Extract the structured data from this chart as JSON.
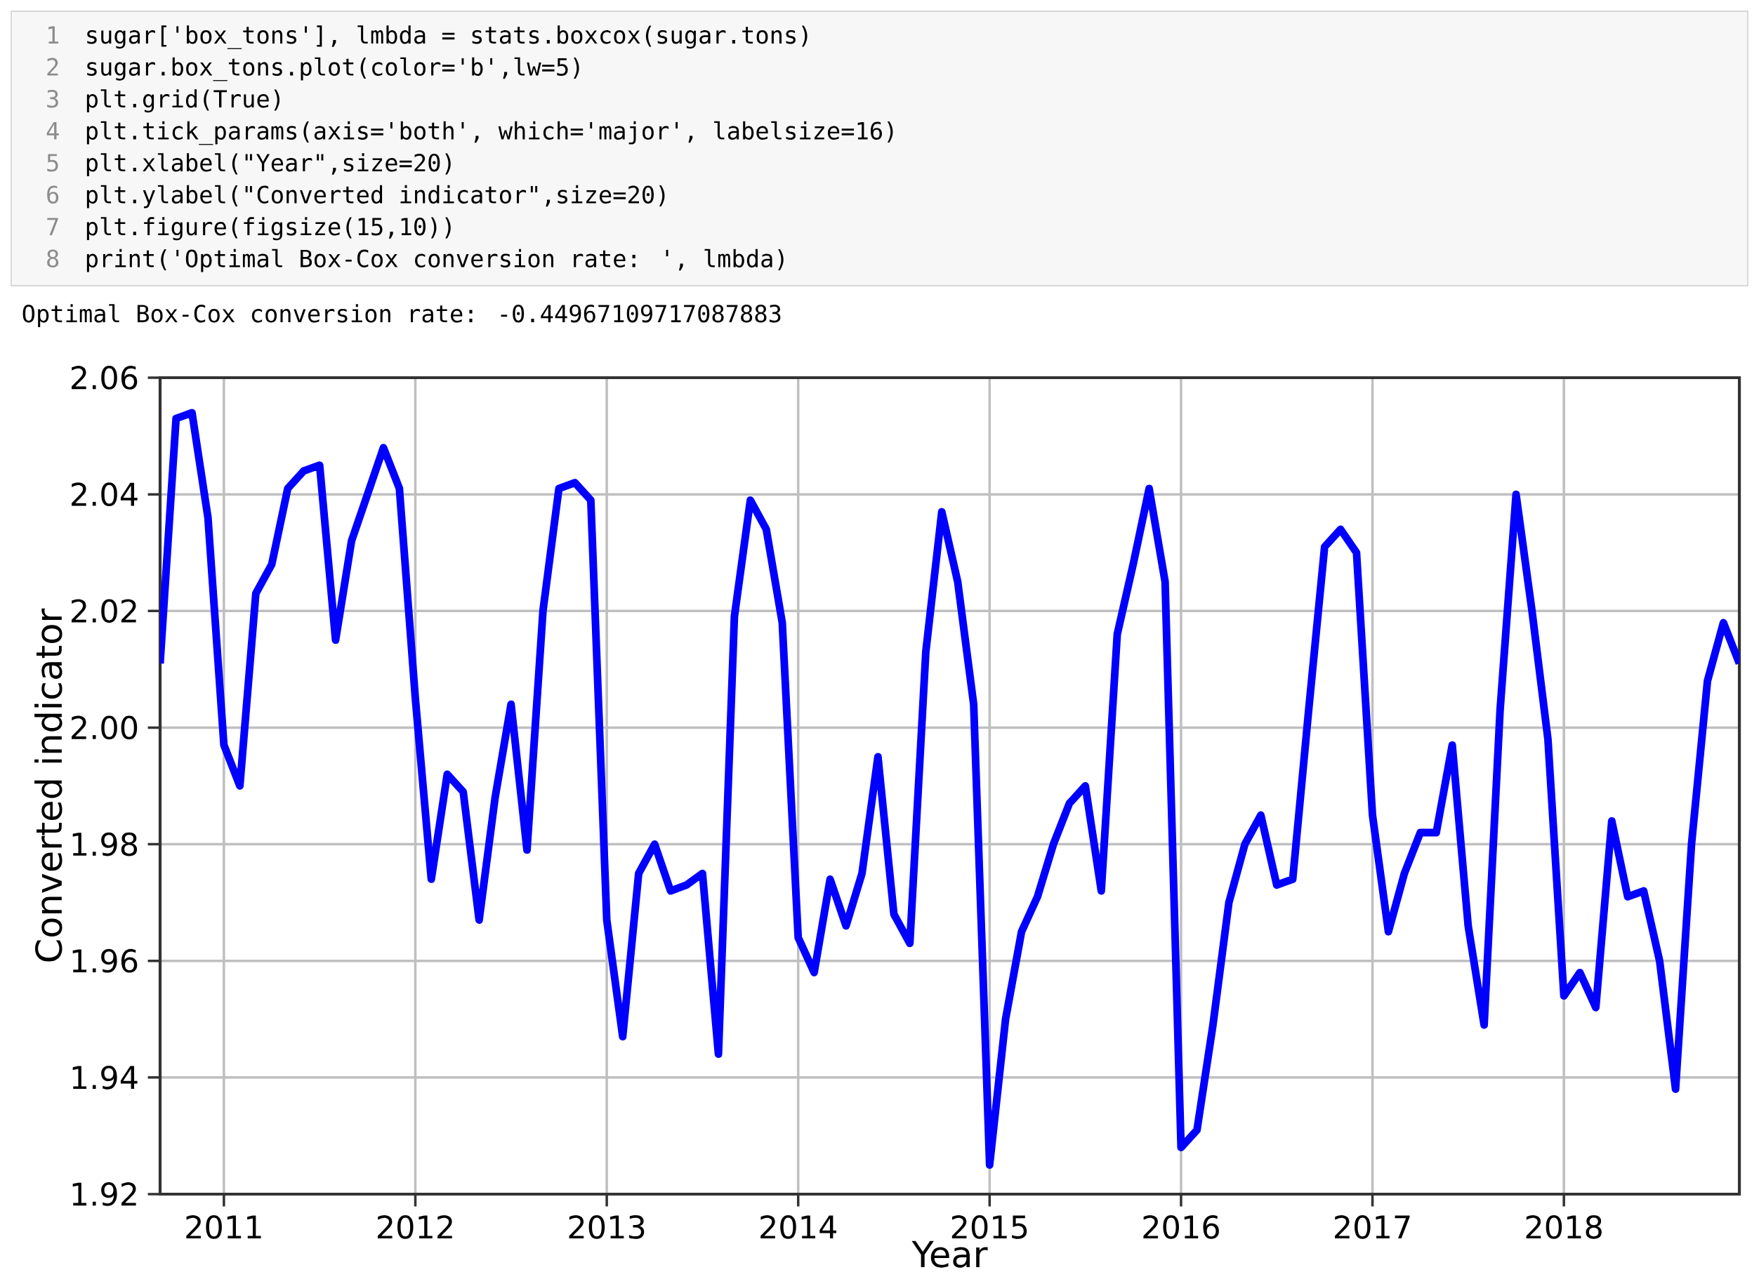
{
  "chart_data": {
    "type": "line",
    "xlabel": "Year",
    "ylabel": "Converted indicator",
    "annotations": [
      "1",
      "sugar['box_tons'], lmbda = stats.boxcox(sugar.tons)",
      "2",
      "sugar.box_tons.plot(color='b',lw=5)",
      "3",
      "plt.grid(True)",
      "4",
      "plt.tick_params(axis='both', which='major', labelsize=16)",
      "5",
      "plt.xlabel(\"Year\",size=20)",
      "6",
      "plt.ylabel(\"Converted indicator\",size=20)",
      "7",
      "plt.figure(figsize(15,10))",
      "8",
      "print('Optimal Box-Cox conversion rate: ', lmbda)",
      "Optimal Box-Cox conversion rate:  -0.44967109717087883"
    ],
    "x": [
      "2010-09",
      "2010-10",
      "2010-11",
      "2010-12",
      "2011-01",
      "2011-02",
      "2011-03",
      "2011-04",
      "2011-05",
      "2011-06",
      "2011-07",
      "2011-08",
      "2011-09",
      "2011-10",
      "2011-11",
      "2011-12",
      "2012-01",
      "2012-02",
      "2012-03",
      "2012-04",
      "2012-05",
      "2012-06",
      "2012-07",
      "2012-08",
      "2012-09",
      "2012-10",
      "2012-11",
      "2012-12",
      "2013-01",
      "2013-02",
      "2013-03",
      "2013-04",
      "2013-05",
      "2013-06",
      "2013-07",
      "2013-08",
      "2013-09",
      "2013-10",
      "2013-11",
      "2013-12",
      "2014-01",
      "2014-02",
      "2014-03",
      "2014-04",
      "2014-05",
      "2014-06",
      "2014-07",
      "2014-08",
      "2014-09",
      "2014-10",
      "2014-11",
      "2014-12",
      "2015-01",
      "2015-02",
      "2015-03",
      "2015-04",
      "2015-05",
      "2015-06",
      "2015-07",
      "2015-08",
      "2015-09",
      "2015-10",
      "2015-11",
      "2015-12",
      "2016-01",
      "2016-02",
      "2016-03",
      "2016-04",
      "2016-05",
      "2016-06",
      "2016-07",
      "2016-08",
      "2016-09",
      "2016-10",
      "2016-11",
      "2016-12",
      "2017-01",
      "2017-02",
      "2017-03",
      "2017-04",
      "2017-05",
      "2017-06",
      "2017-07",
      "2017-08",
      "2017-09",
      "2017-10",
      "2017-11",
      "2017-12",
      "2018-01",
      "2018-02",
      "2018-03",
      "2018-04",
      "2018-05",
      "2018-06",
      "2018-07",
      "2018-08",
      "2018-09",
      "2018-10",
      "2018-11",
      "2018-12"
    ],
    "series": [
      {
        "color": "#0000ff",
        "values": [
          2.011,
          2.053,
          2.054,
          2.036,
          1.997,
          1.99,
          2.023,
          2.028,
          2.041,
          2.044,
          2.045,
          2.015,
          2.032,
          2.04,
          2.048,
          2.041,
          2.005,
          1.974,
          1.992,
          1.989,
          1.967,
          1.988,
          2.004,
          1.979,
          2.02,
          2.041,
          2.042,
          2.039,
          1.967,
          1.947,
          1.975,
          1.98,
          1.972,
          1.973,
          1.975,
          1.944,
          2.019,
          2.039,
          2.034,
          2.018,
          1.964,
          1.958,
          1.974,
          1.966,
          1.975,
          1.995,
          1.968,
          1.963,
          2.013,
          2.037,
          2.025,
          2.004,
          1.925,
          1.95,
          1.965,
          1.971,
          1.98,
          1.987,
          1.99,
          1.972,
          2.016,
          2.028,
          2.041,
          2.025,
          1.928,
          1.931,
          1.949,
          1.97,
          1.98,
          1.985,
          1.973,
          1.974,
          2.003,
          2.031,
          2.034,
          2.03,
          1.985,
          1.965,
          1.975,
          1.982,
          1.982,
          1.997,
          1.966,
          1.949,
          2.003,
          2.04,
          2.02,
          1.998,
          1.954,
          1.958,
          1.952,
          1.984,
          1.971,
          1.972,
          1.96,
          1.938,
          1.98,
          2.008,
          2.018,
          2.011
        ]
      }
    ],
    "xlim": [
      "2010-09",
      "2018-12"
    ],
    "xticks": [
      {
        "value": "2011-01",
        "label": "2011"
      },
      {
        "value": "2012-01",
        "label": "2012"
      },
      {
        "value": "2013-01",
        "label": "2013"
      },
      {
        "value": "2014-01",
        "label": "2014"
      },
      {
        "value": "2015-01",
        "label": "2015"
      },
      {
        "value": "2016-01",
        "label": "2016"
      },
      {
        "value": "2017-01",
        "label": "2017"
      },
      {
        "value": "2018-01",
        "label": "2018"
      }
    ],
    "ylim": [
      1.92,
      2.06
    ],
    "yticks": [
      {
        "value": 1.92,
        "label": "1.92"
      },
      {
        "value": 1.94,
        "label": "1.94"
      },
      {
        "value": 1.96,
        "label": "1.96"
      },
      {
        "value": 1.98,
        "label": "1.98"
      },
      {
        "value": 2.0,
        "label": "2.00"
      },
      {
        "value": 2.02,
        "label": "2.02"
      },
      {
        "value": 2.04,
        "label": "2.04"
      },
      {
        "value": 2.06,
        "label": "2.06"
      }
    ],
    "grid": true,
    "line_style": "solid",
    "marker": "none"
  }
}
